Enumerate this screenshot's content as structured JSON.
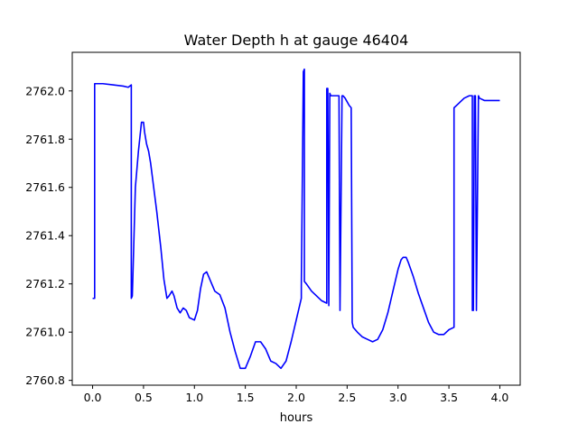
{
  "chart_data": {
    "type": "line",
    "title": "Water Depth h at gauge 46404",
    "xlabel": "hours",
    "ylabel": "",
    "xlim": [
      -0.2,
      4.2
    ],
    "ylim": [
      2760.78,
      2762.16
    ],
    "xticks": [
      0.0,
      0.5,
      1.0,
      1.5,
      2.0,
      2.5,
      3.0,
      3.5,
      4.0
    ],
    "xtick_labels": [
      "0.0",
      "0.5",
      "1.0",
      "1.5",
      "2.0",
      "2.5",
      "3.0",
      "3.5",
      "4.0"
    ],
    "yticks": [
      2760.8,
      2761.0,
      2761.2,
      2761.4,
      2761.6,
      2761.8,
      2762.0
    ],
    "ytick_labels": [
      "2760.8",
      "2761.0",
      "2761.2",
      "2761.4",
      "2761.6",
      "2761.8",
      "2762.0"
    ],
    "grid": false,
    "line_color": "#0000ff",
    "series": [
      {
        "x": [
          0.0,
          0.02,
          0.02,
          0.1,
          0.2,
          0.3,
          0.35,
          0.38,
          0.38,
          0.39,
          0.4,
          0.42,
          0.45,
          0.48,
          0.5,
          0.51,
          0.53,
          0.55,
          0.57,
          0.6,
          0.63,
          0.67,
          0.7,
          0.73,
          0.75,
          0.78,
          0.8,
          0.83,
          0.86,
          0.89,
          0.92,
          0.95,
          1.0,
          1.03,
          1.06,
          1.09,
          1.12,
          1.15,
          1.2,
          1.25,
          1.3,
          1.35,
          1.4,
          1.45,
          1.5,
          1.55,
          1.6,
          1.65,
          1.7,
          1.75,
          1.8,
          1.85,
          1.9,
          1.95,
          2.0,
          2.05,
          2.05,
          2.07,
          2.08,
          2.08,
          2.1,
          2.15,
          2.2,
          2.25,
          2.3,
          2.3,
          2.31,
          2.32,
          2.32,
          2.33,
          2.34,
          2.34,
          2.37,
          2.4,
          2.42,
          2.43,
          2.43,
          2.45,
          2.46,
          2.46,
          2.48,
          2.52,
          2.54,
          2.55,
          2.56,
          2.6,
          2.65,
          2.7,
          2.75,
          2.8,
          2.85,
          2.9,
          2.95,
          3.0,
          3.03,
          3.05,
          3.08,
          3.1,
          3.15,
          3.2,
          3.25,
          3.3,
          3.35,
          3.4,
          3.45,
          3.5,
          3.55,
          3.55,
          3.6,
          3.65,
          3.7,
          3.72,
          3.73,
          3.73,
          3.74,
          3.75,
          3.76,
          3.76,
          3.77,
          3.77,
          3.79,
          3.8,
          3.8,
          3.85,
          3.9,
          3.95,
          4.0
        ],
        "y": [
          2761.14,
          2761.14,
          2762.03,
          2762.03,
          2762.025,
          2762.02,
          2762.015,
          2762.025,
          2761.14,
          2761.15,
          2761.3,
          2761.6,
          2761.75,
          2761.87,
          2761.87,
          2761.83,
          2761.78,
          2761.75,
          2761.7,
          2761.6,
          2761.5,
          2761.35,
          2761.22,
          2761.14,
          2761.15,
          2761.17,
          2761.15,
          2761.1,
          2761.08,
          2761.1,
          2761.09,
          2761.06,
          2761.05,
          2761.09,
          2761.18,
          2761.24,
          2761.25,
          2761.22,
          2761.17,
          2761.155,
          2761.1,
          2761.0,
          2760.92,
          2760.85,
          2760.85,
          2760.9,
          2760.96,
          2760.96,
          2760.93,
          2760.88,
          2760.87,
          2760.85,
          2760.88,
          2760.96,
          2761.05,
          2761.14,
          2761.19,
          2762.08,
          2762.09,
          2761.21,
          2761.2,
          2761.17,
          2761.15,
          2761.13,
          2761.12,
          2762.01,
          2762.01,
          2761.11,
          2761.11,
          2761.99,
          2761.98,
          2761.98,
          2761.98,
          2761.98,
          2761.98,
          2761.09,
          2761.09,
          2761.98,
          2761.98,
          2761.98,
          2761.97,
          2761.94,
          2761.93,
          2761.04,
          2761.02,
          2761.0,
          2760.98,
          2760.97,
          2760.96,
          2760.97,
          2761.01,
          2761.08,
          2761.17,
          2761.26,
          2761.3,
          2761.31,
          2761.31,
          2761.29,
          2761.23,
          2761.16,
          2761.1,
          2761.04,
          2761.0,
          2760.99,
          2760.99,
          2761.01,
          2761.02,
          2761.93,
          2761.95,
          2761.97,
          2761.98,
          2761.98,
          2761.98,
          2761.09,
          2761.09,
          2761.98,
          2761.98,
          2761.98,
          2761.09,
          2761.09,
          2761.98,
          2761.97,
          2761.97,
          2761.96,
          2761.96,
          2761.96,
          2761.96
        ]
      }
    ]
  }
}
